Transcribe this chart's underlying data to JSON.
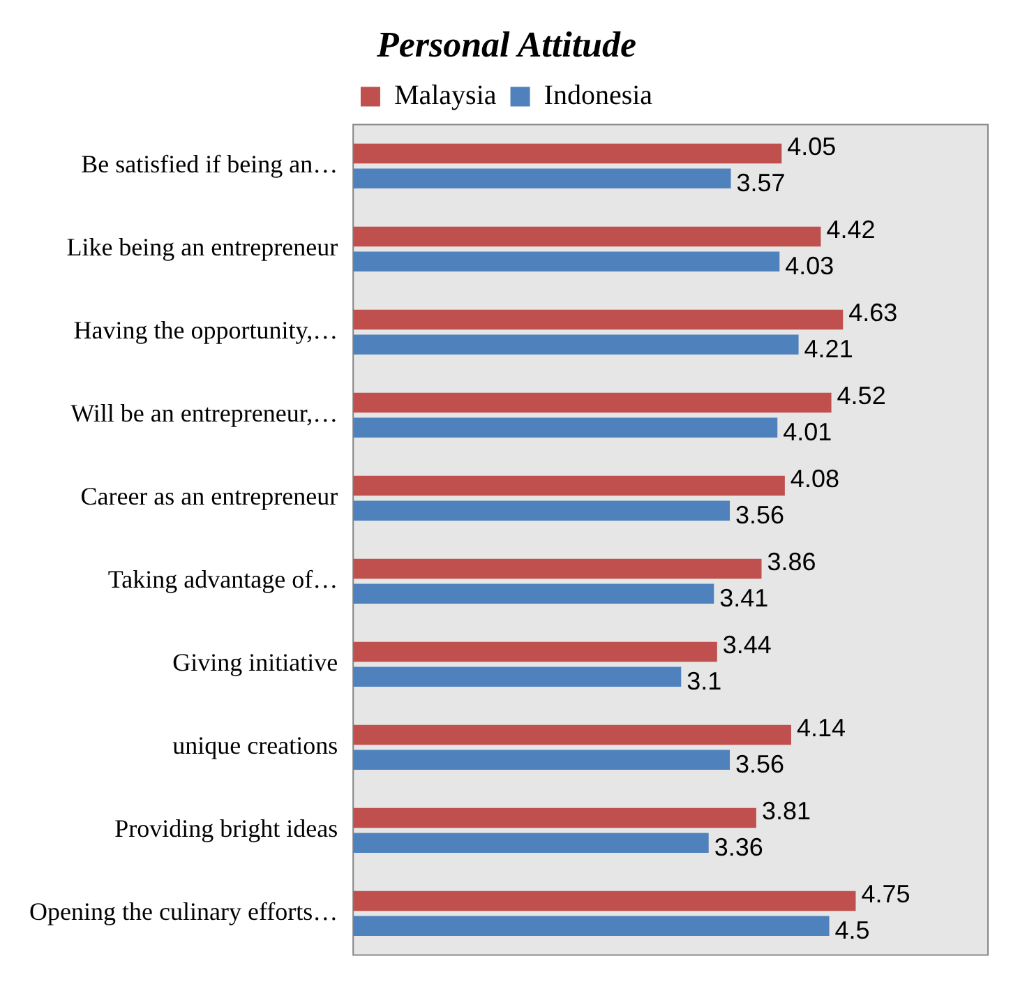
{
  "chart_data": {
    "type": "bar",
    "orientation": "horizontal",
    "title": "Personal Attitude",
    "categories": [
      "Be satisfied if being an…",
      "Like being an entrepreneur",
      "Having the opportunity,…",
      "Will be an entrepreneur,…",
      "Career as an entrepreneur",
      "Taking advantage of…",
      "Giving initiative",
      "unique creations",
      "Providing bright ideas",
      "Opening the culinary efforts…"
    ],
    "series": [
      {
        "name": "Malaysia",
        "color": "#c0504d",
        "values": [
          4.05,
          4.42,
          4.63,
          4.52,
          4.08,
          3.86,
          3.44,
          4.14,
          3.81,
          4.75
        ]
      },
      {
        "name": "Indonesia",
        "color": "#4f81bd",
        "values": [
          3.57,
          4.03,
          4.21,
          4.01,
          3.56,
          3.41,
          3.1,
          3.56,
          3.36,
          4.5
        ]
      }
    ],
    "xlim": [
      0,
      6
    ],
    "tick_labels": "y",
    "data_labels": true,
    "legend": "top",
    "grid": false
  }
}
